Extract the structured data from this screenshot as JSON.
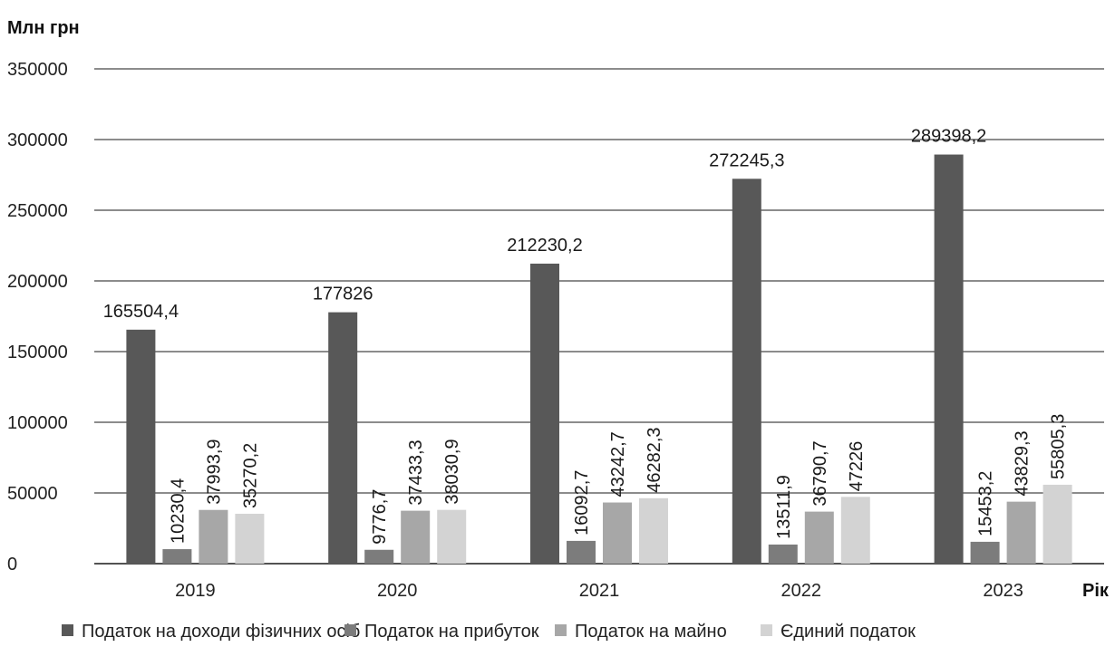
{
  "chart_data": {
    "type": "bar",
    "ylabel": "Млн грн",
    "xlabel": "Рік",
    "categories": [
      "2019",
      "2020",
      "2021",
      "2022",
      "2023"
    ],
    "series": [
      {
        "name": "Податок на доходи фізичних осіб",
        "values": [
          165504.4,
          177826,
          212230.2,
          272245.3,
          289398.2
        ],
        "labels": [
          "165504,4",
          "177826",
          "212230,2",
          "272245,3",
          "289398,2"
        ],
        "color": "#585858"
      },
      {
        "name": "Податок на прибуток",
        "values": [
          10230.4,
          9776.7,
          16092.7,
          13511.9,
          15453.2
        ],
        "labels": [
          "10230,4",
          "9776,7",
          "16092,7",
          "13511,9",
          "15453,2"
        ],
        "color": "#7c7c7c"
      },
      {
        "name": "Податок на майно",
        "values": [
          37993.9,
          37433.3,
          43242.7,
          36790.7,
          43829.3
        ],
        "labels": [
          "37993,9",
          "37433,3",
          "43242,7",
          "36790,7",
          "43829,3"
        ],
        "color": "#a7a7a7"
      },
      {
        "name": "Єдиний податок",
        "values": [
          35270.2,
          38030.9,
          46282.3,
          47226,
          55805.3
        ],
        "labels": [
          "35270,2",
          "38030,9",
          "46282,3",
          "47226",
          "55805,3"
        ],
        "color": "#d3d3d3"
      }
    ],
    "ylim": [
      0,
      350000
    ],
    "yticks": [
      "0",
      "50000",
      "100000",
      "150000",
      "200000",
      "250000",
      "300000",
      "350000"
    ],
    "grid": true,
    "legend_position": "bottom"
  }
}
